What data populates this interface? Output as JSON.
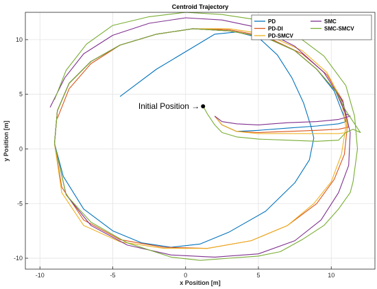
{
  "chart_data": {
    "type": "line",
    "title": "Centroid Trajectory",
    "xlabel": "x Position [m]",
    "ylabel": "y Position [m]",
    "xlim": [
      -11,
      13
    ],
    "ylim": [
      -11,
      12.5
    ],
    "xticks": [
      -10,
      -5,
      0,
      5,
      10
    ],
    "yticks": [
      -10,
      -5,
      0,
      5,
      10
    ],
    "grid": true,
    "legend_position": "top-right",
    "legend_columns": 2,
    "annotation": {
      "text": "Initial Position →",
      "point": [
        1.2,
        3.9
      ]
    },
    "series": [
      {
        "name": "PD",
        "color": "#0072BD",
        "x": [
          -4.5,
          -2,
          0.5,
          2,
          3.5,
          5,
          6.3,
          7.3,
          8.1,
          8.6,
          8.8,
          8.5,
          7.5,
          5.5,
          3,
          1,
          -1,
          -3,
          -5,
          -7,
          -8.4,
          -9,
          -8.8,
          -8,
          -6.5,
          -4.5,
          -2,
          0.5,
          3,
          5.5,
          7.5,
          9,
          10.2,
          10.8,
          11,
          10.5,
          9,
          7,
          5,
          3.5,
          2.5,
          2
        ],
        "y": [
          4.8,
          7.3,
          9.3,
          10.5,
          10.7,
          10.2,
          8.6,
          6.5,
          4.2,
          2.1,
          1,
          -1,
          -3.1,
          -5.7,
          -7.6,
          -8.7,
          -9,
          -8.6,
          -7.5,
          -5.5,
          -2.5,
          0.5,
          3.5,
          6,
          8,
          9.5,
          10.5,
          11,
          10.8,
          10.2,
          9,
          7.3,
          5.3,
          3.2,
          2.5,
          2.3,
          2.1,
          1.9,
          1.7,
          1.6,
          2.2,
          3
        ]
      },
      {
        "name": "PD-DI",
        "color": "#D95319",
        "x": [
          -8.8,
          -8,
          -6.5,
          -4.5,
          -2,
          0.5,
          3,
          5.5,
          8,
          9.7,
          10.8,
          11.1,
          10.9,
          10.2,
          9,
          7,
          4.5,
          1.5,
          -1.5,
          -4.5,
          -7,
          -8.5,
          -9,
          -8.8,
          -8,
          -6.5,
          -4.5,
          -2,
          0.5,
          3,
          5.5,
          7.5,
          9,
          10.3,
          11,
          11.2,
          10.5,
          9,
          7,
          5,
          3.5,
          2.5,
          2
        ],
        "y": [
          2.8,
          5.5,
          7.8,
          9.5,
          10.5,
          11,
          10.9,
          10.3,
          8.7,
          6.8,
          4.4,
          2,
          -0.5,
          -2.8,
          -5,
          -7,
          -8.4,
          -9.1,
          -9,
          -8.3,
          -6.5,
          -3.5,
          0.5,
          3.5,
          6,
          8,
          9.5,
          10.5,
          11,
          10.8,
          10.2,
          9,
          7.3,
          5.3,
          3.2,
          2,
          1.8,
          1.7,
          1.6,
          1.5,
          1.6,
          2.2,
          3
        ]
      },
      {
        "name": "PD-SMCV",
        "color": "#EDB120",
        "x": [
          -9,
          -8.8,
          -8,
          -6.5,
          -4.5,
          -2,
          0.5,
          3,
          5.5,
          8,
          9.7,
          10.7,
          11,
          10.7,
          10,
          8.8,
          7,
          4.5,
          1.5,
          -1.5,
          -4.5,
          -7,
          -8.5,
          -9,
          -8.8,
          -8,
          -6.5,
          -4.5,
          -2,
          0.5,
          3,
          5.5,
          7.5,
          9,
          10.3,
          11,
          11.1,
          10.5,
          9,
          7,
          5,
          3.5,
          2.5,
          2
        ],
        "y": [
          0.5,
          3.5,
          6,
          8,
          9.5,
          10.5,
          11,
          11,
          10.5,
          9,
          7,
          4.5,
          2,
          -0.5,
          -3,
          -5,
          -7,
          -8.4,
          -9.1,
          -9.1,
          -8.5,
          -7,
          -4,
          0.5,
          3.5,
          6,
          8,
          9.5,
          10.5,
          11,
          10.8,
          10.2,
          9,
          7.3,
          5.3,
          3.2,
          1.5,
          1.4,
          1.4,
          1.4,
          1.4,
          1.6,
          2.2,
          3
        ]
      },
      {
        "name": "SMC",
        "color": "#7E2F8E",
        "x": [
          -9.3,
          -8.3,
          -7,
          -5,
          -2.5,
          0,
          2.5,
          5,
          7.5,
          9.5,
          10.8,
          11.3,
          11.2,
          10.5,
          9.3,
          7.5,
          5,
          2,
          -1,
          -4,
          -6.5,
          -8.2,
          -9,
          -8.8,
          -8,
          -6.5,
          -4.5,
          -2,
          0.5,
          3,
          5.5,
          7.5,
          9,
          10.3,
          11,
          11.3,
          10.5,
          9,
          7,
          5,
          3.5,
          2.5,
          2
        ],
        "y": [
          3.8,
          6.5,
          8.7,
          10.4,
          11.5,
          12,
          11.8,
          11.1,
          9.4,
          7,
          4.3,
          1.5,
          -1.5,
          -4,
          -6.5,
          -8.4,
          -9.6,
          -9.9,
          -9.7,
          -8.8,
          -7,
          -4.2,
          0.5,
          3.5,
          6,
          8,
          9.5,
          10.5,
          11,
          10.8,
          10.2,
          9,
          7.3,
          5.3,
          3.2,
          3,
          2.7,
          2.5,
          2.4,
          2.2,
          2.3,
          2.5,
          3
        ]
      },
      {
        "name": "SMC-SMCV",
        "color": "#77AC30",
        "x": [
          -9,
          -8.2,
          -6.8,
          -5,
          -2.5,
          0,
          2.5,
          5,
          7.5,
          9.5,
          11,
          11.6,
          11.8,
          11.5,
          11.3,
          10.5,
          9.5,
          8,
          6.5,
          5,
          3,
          1,
          -1,
          -4,
          -6.5,
          -8.2,
          -9,
          -8.8,
          -8,
          -6.5,
          -4.5,
          -2,
          0.5,
          3,
          5.5,
          7.5,
          9,
          10.3,
          11,
          11.5,
          12,
          11.5,
          11,
          10.5,
          9,
          7,
          5,
          3.5,
          2.5,
          2,
          1.5,
          1.2
        ],
        "y": [
          4.5,
          7.2,
          9.6,
          11.3,
          12.1,
          12.5,
          12.3,
          11.8,
          10.5,
          8.5,
          5.8,
          3,
          0,
          -3,
          -4,
          -5.5,
          -7,
          -8.3,
          -9.4,
          -9.8,
          -10,
          -10.2,
          -9.9,
          -8.6,
          -6.7,
          -4.2,
          0.5,
          3.5,
          6,
          8,
          9.5,
          10.5,
          11,
          10.8,
          10.2,
          9,
          7.3,
          5.3,
          3.5,
          2.5,
          1.5,
          1.8,
          1.5,
          0.8,
          0.7,
          0.8,
          0.9,
          1.1,
          1.5,
          2.2,
          3.2,
          3.9
        ]
      }
    ]
  }
}
